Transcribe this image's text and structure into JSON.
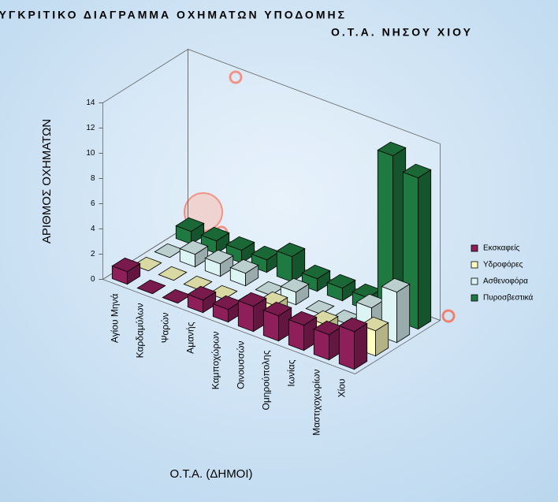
{
  "chart_data": {
    "type": "bar3d",
    "title": "ΣΥΓΚΡΙΤΙΚΟ ΔΙΑΓΡΑΜΜΑ ΟΧΗΜΑΤΩΝ ΥΠΟΔΟΜΗΣ",
    "subtitle": "Ο.Τ.Α. ΝΗΣΟΥ ΧΙΟΥ",
    "x_label": "Ο.Τ.Α. (ΔΗΜΟΙ)",
    "y_label": "ΑΡΙΘΜΟΣ ΟΧΗΜΑΤΩΝ",
    "categories": [
      "Αγίου Μηνά",
      "Καρδαμύλων",
      "Ψαρών",
      "Αμανής",
      "Καμποχώρων",
      "Οινουσσών",
      "Ομηρούπολης",
      "Ιωνίας",
      "Μαστιχοχωρίων",
      "Χίου"
    ],
    "series": [
      {
        "name": "Εκσκαφείς",
        "color": "#8e1f5b",
        "values": [
          1,
          0,
          0,
          1,
          1,
          2,
          2,
          2,
          2,
          3
        ]
      },
      {
        "name": "Υδροφόρες",
        "color": "#ffffc0",
        "values": [
          0,
          0,
          0,
          0,
          0,
          1,
          0,
          1,
          1,
          2
        ]
      },
      {
        "name": "Ασθενοφόρα",
        "color": "#dcf4f4",
        "values": [
          0,
          1,
          1,
          1,
          0,
          1,
          0,
          0,
          2,
          4
        ]
      },
      {
        "name": "Πυροσβεστικά",
        "color": "#1e7a40",
        "values": [
          1,
          1,
          1,
          1,
          2,
          1,
          1,
          1,
          13,
          12
        ]
      }
    ],
    "ylim": [
      0,
      14
    ],
    "yticks": [
      0,
      2,
      4,
      6,
      8,
      10,
      12,
      14
    ],
    "grid": false,
    "legend": "right"
  }
}
